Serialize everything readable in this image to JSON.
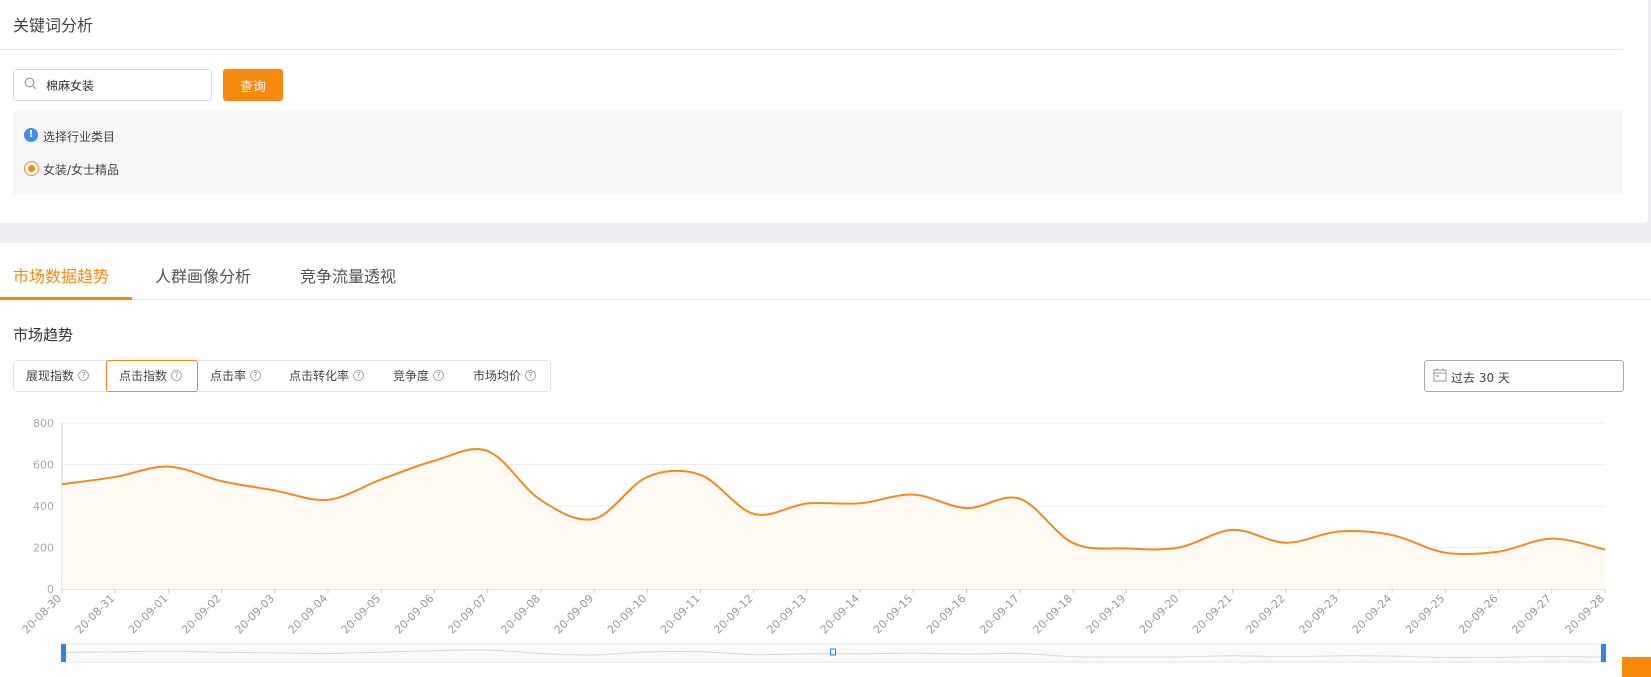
{
  "keyword_panel": {
    "title": "关键词分析",
    "search_value": "棉麻女装",
    "query_label": "查询",
    "industry_prompt": "选择行业类目",
    "industry_option": "女装/女士精品"
  },
  "tabs": [
    {
      "label": "市场数据趋势",
      "active": true
    },
    {
      "label": "人群画像分析",
      "active": false
    },
    {
      "label": "竞争流量透视",
      "active": false
    }
  ],
  "trend": {
    "section_title": "市场趋势",
    "metrics": [
      {
        "label": "展现指数",
        "active": false
      },
      {
        "label": "点击指数",
        "active": true
      },
      {
        "label": "点击率",
        "active": false
      },
      {
        "label": "点击转化率",
        "active": false
      },
      {
        "label": "竞争度",
        "active": false
      },
      {
        "label": "市场均价",
        "active": false
      }
    ],
    "date_range": "过去 30 天"
  },
  "colors": {
    "accent": "#f7890d",
    "line": "#f28a1f",
    "area": "#fefaf2",
    "info": "#3f8cf2",
    "zoom_handle": "#2f86e0"
  },
  "chart_data": {
    "type": "area",
    "categories": [
      "20-08-30",
      "20-08-31",
      "20-09-01",
      "20-09-02",
      "20-09-03",
      "20-09-04",
      "20-09-05",
      "20-09-06",
      "20-09-07",
      "20-09-08",
      "20-09-09",
      "20-09-10",
      "20-09-11",
      "20-09-12",
      "20-09-13",
      "20-09-14",
      "20-09-15",
      "20-09-16",
      "20-09-17",
      "20-09-18",
      "20-09-19",
      "20-09-20",
      "20-09-21",
      "20-09-22",
      "20-09-23",
      "20-09-24",
      "20-09-25",
      "20-09-26",
      "20-09-27",
      "20-09-28"
    ],
    "values": [
      505,
      540,
      590,
      520,
      475,
      430,
      528,
      618,
      665,
      428,
      338,
      540,
      550,
      362,
      412,
      413,
      455,
      390,
      435,
      222,
      195,
      200,
      285,
      223,
      277,
      260,
      175,
      180,
      243,
      190
    ],
    "yticks": [
      0,
      200,
      400,
      600,
      800
    ],
    "ylim": [
      0,
      800
    ],
    "grid": true,
    "has_zoom_slider": true
  }
}
